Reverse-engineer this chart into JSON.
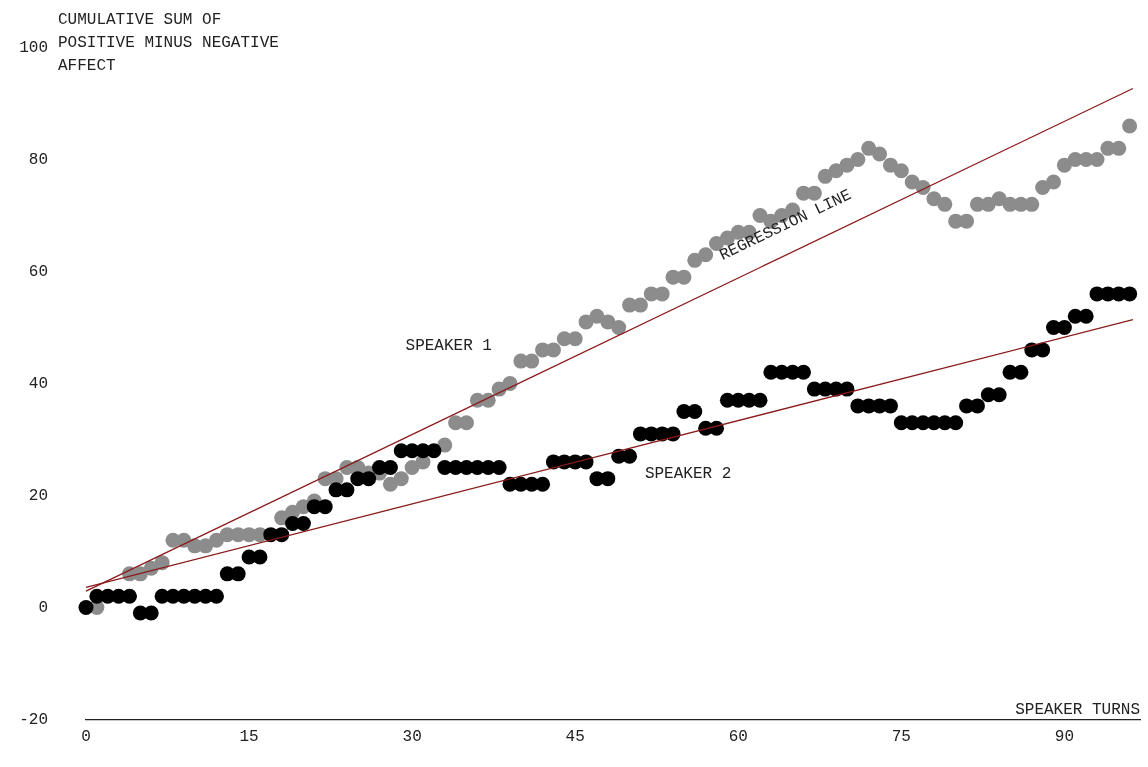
{
  "chart_data": {
    "type": "scatter",
    "ylabel": "CUMULATIVE SUM OF POSITIVE MINUS NEGATIVE AFFECT",
    "xlabel": "SPEAKER TURNS",
    "xlim": [
      0,
      97
    ],
    "ylim": [
      -20,
      100
    ],
    "xticks": [
      0,
      15,
      30,
      45,
      60,
      75,
      90
    ],
    "yticks": [
      -20,
      0,
      20,
      40,
      60,
      80,
      100
    ],
    "grid": false,
    "legend": false,
    "marker": "circle",
    "annotations": [
      "REGRESSION LINE"
    ],
    "series": [
      {
        "name": "SPEAKER 1",
        "color": "#8c8c8c",
        "x": [
          1,
          2,
          3,
          4,
          5,
          6,
          7,
          8,
          9,
          10,
          11,
          12,
          13,
          14,
          15,
          16,
          17,
          18,
          19,
          20,
          21,
          22,
          23,
          24,
          25,
          26,
          27,
          28,
          29,
          30,
          31,
          32,
          33,
          34,
          35,
          36,
          37,
          38,
          39,
          40,
          41,
          42,
          43,
          44,
          45,
          46,
          47,
          48,
          49,
          50,
          51,
          52,
          53,
          54,
          55,
          56,
          57,
          58,
          59,
          60,
          61,
          62,
          63,
          64,
          65,
          66,
          67,
          68,
          69,
          70,
          71,
          72,
          73,
          74,
          75,
          76,
          77,
          78,
          79,
          80,
          81,
          82,
          83,
          84,
          85,
          86,
          87,
          88,
          89,
          90,
          91,
          92,
          93,
          94,
          95,
          96
        ],
        "values": [
          0,
          null,
          null,
          6,
          6,
          7,
          8,
          12,
          12,
          11,
          11,
          12,
          13,
          13,
          13,
          13,
          null,
          16,
          17,
          18,
          19,
          23,
          23,
          25,
          25,
          24,
          24,
          22,
          23,
          25,
          26,
          null,
          29,
          33,
          33,
          37,
          37,
          39,
          40,
          44,
          44,
          46,
          46,
          48,
          48,
          51,
          52,
          51,
          50,
          54,
          54,
          56,
          56,
          59,
          59,
          62,
          63,
          65,
          66,
          67,
          67,
          70,
          69,
          70,
          71,
          74,
          74,
          77,
          78,
          79,
          80,
          82,
          81,
          79,
          78,
          76,
          75,
          73,
          72,
          69,
          69,
          72,
          72,
          73,
          72,
          72,
          72,
          75,
          76,
          79,
          80,
          80,
          80,
          82,
          82,
          86
        ]
      },
      {
        "name": "SPEAKER 2",
        "color": "#000000",
        "x": [
          0,
          1,
          2,
          3,
          4,
          5,
          6,
          7,
          8,
          9,
          10,
          11,
          12,
          13,
          14,
          15,
          16,
          17,
          18,
          19,
          20,
          21,
          22,
          23,
          24,
          25,
          26,
          27,
          28,
          29,
          30,
          31,
          32,
          33,
          34,
          35,
          36,
          37,
          38,
          39,
          40,
          41,
          42,
          43,
          44,
          45,
          46,
          47,
          48,
          49,
          50,
          51,
          52,
          53,
          54,
          55,
          56,
          57,
          58,
          59,
          60,
          61,
          62,
          63,
          64,
          65,
          66,
          67,
          68,
          69,
          70,
          71,
          72,
          73,
          74,
          75,
          76,
          77,
          78,
          79,
          80,
          81,
          82,
          83,
          84,
          85,
          86,
          87,
          88,
          89,
          90,
          91,
          92,
          93,
          94,
          95,
          96
        ],
        "values": [
          0,
          2,
          2,
          2,
          2,
          -1,
          -1,
          2,
          2,
          2,
          2,
          2,
          2,
          6,
          6,
          9,
          9,
          13,
          13,
          15,
          15,
          18,
          18,
          21,
          21,
          23,
          23,
          25,
          25,
          28,
          28,
          28,
          28,
          25,
          25,
          25,
          25,
          25,
          25,
          22,
          22,
          22,
          22,
          26,
          26,
          26,
          26,
          23,
          23,
          27,
          27,
          31,
          31,
          31,
          31,
          35,
          35,
          32,
          32,
          37,
          37,
          37,
          37,
          42,
          42,
          42,
          42,
          39,
          39,
          39,
          39,
          36,
          36,
          36,
          36,
          33,
          33,
          33,
          33,
          33,
          33,
          36,
          36,
          38,
          38,
          42,
          42,
          46,
          46,
          50,
          50,
          52,
          52,
          56,
          56,
          56,
          56
        ]
      },
      {
        "type": "line",
        "color": "#8b1a1a",
        "marker": "none",
        "x": [
          0,
          96.3
        ],
        "values": [
          2.9,
          92.7
        ]
      },
      {
        "type": "line",
        "color": "#8b1a1a",
        "marker": "none",
        "x": [
          0,
          96.3
        ],
        "values": [
          3.6,
          51.4
        ]
      }
    ]
  }
}
